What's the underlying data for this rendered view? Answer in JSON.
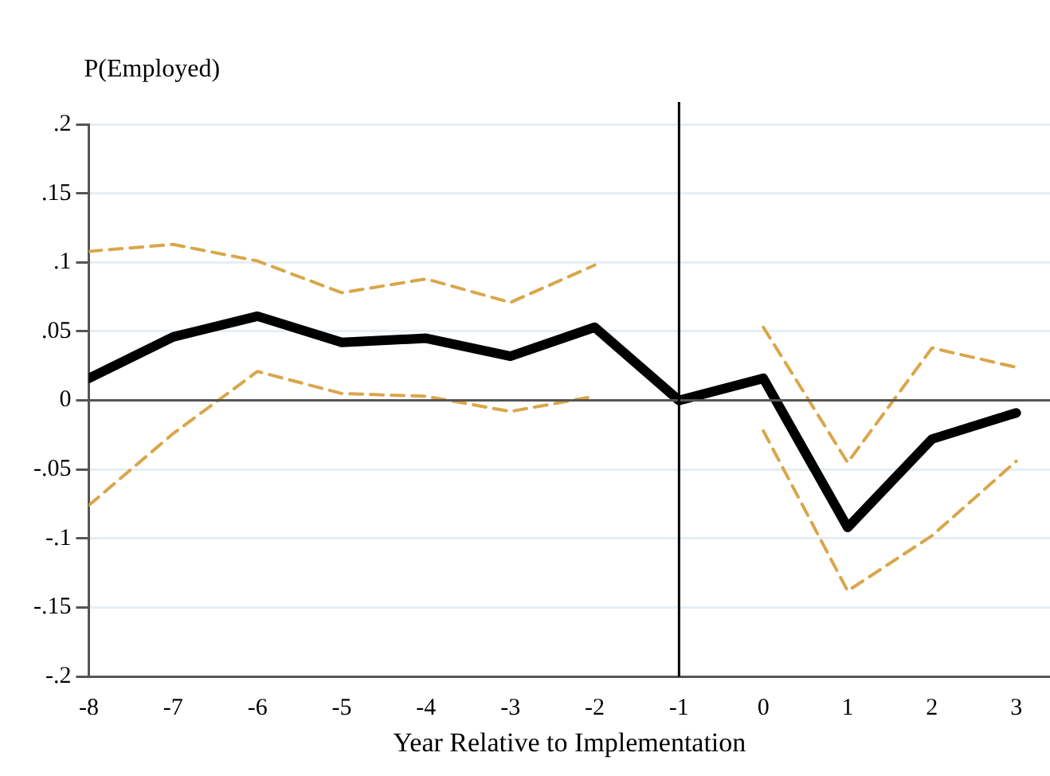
{
  "chart_data": {
    "type": "line",
    "ylabel": "P(Employed)",
    "xlabel": "Year Relative to Implementation",
    "x": [
      -8,
      -7,
      -6,
      -5,
      -4,
      -3,
      -2,
      -1,
      0,
      1,
      2,
      3
    ],
    "series": [
      {
        "color": "#000000",
        "line_style": "solid",
        "values": [
          0.016,
          0.046,
          0.061,
          0.042,
          0.045,
          0.032,
          0.053,
          0,
          0.016,
          -0.092,
          -0.028,
          -0.009
        ]
      },
      {
        "color": "#d9a64a",
        "line_style": "dashed",
        "values": [
          0.108,
          0.113,
          0.101,
          0.078,
          0.088,
          0.071,
          0.098,
          null,
          0.053,
          -0.045,
          0.038,
          0.024
        ]
      },
      {
        "color": "#d9a64a",
        "line_style": "dashed",
        "values": [
          -0.076,
          -0.024,
          0.021,
          0.005,
          0.003,
          -0.008,
          0.003,
          null,
          -0.022,
          -0.138,
          -0.098,
          -0.044
        ]
      }
    ],
    "xlim": [
      -8,
      3.4
    ],
    "xticks": [
      -8,
      -7,
      -6,
      -5,
      -4,
      -3,
      -2,
      -1,
      0,
      1,
      2,
      3
    ],
    "ylim": [
      -0.2,
      0.2
    ],
    "yticks": [
      {
        "value": -0.2,
        "label": "-.2"
      },
      {
        "value": -0.15,
        "label": "-.15"
      },
      {
        "value": -0.1,
        "label": "-.1"
      },
      {
        "value": -0.05,
        "label": "-.05"
      },
      0,
      {
        "value": 0.05,
        "label": ".05"
      },
      {
        "value": 0.1,
        "label": ".1"
      },
      {
        "value": 0.15,
        "label": ".15"
      },
      {
        "value": 0.2,
        "label": ".2"
      }
    ],
    "grid": "y",
    "legend": false,
    "marker": "none",
    "ref_lines": [
      {
        "axis": "y",
        "value": 0,
        "color": "#555555"
      },
      {
        "axis": "x",
        "value": -1,
        "color": "#000000"
      }
    ]
  }
}
